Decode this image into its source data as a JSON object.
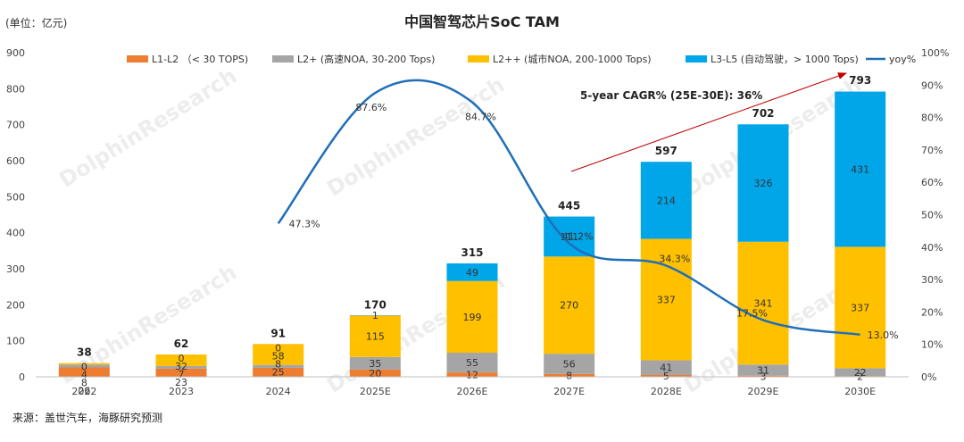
{
  "chart_data": {
    "type": "bar",
    "title": "中国智驾芯片SoC TAM",
    "unit_label": "(单位：亿元)",
    "source_note": "来源：盖世汽车，海豚研究预测",
    "annotation": "5-year CAGR% (25E-30E): 36%",
    "watermark": "DolphinResearch",
    "categories": [
      "2022",
      "2023",
      "2024",
      "2025E",
      "2026E",
      "2027E",
      "2028E",
      "2029E",
      "2030E"
    ],
    "series": [
      {
        "name": "L1-L2 （< 30 TOPS)",
        "color": "#ED7D31",
        "values": [
          26,
          23,
          25,
          20,
          12,
          8,
          5,
          3,
          2
        ]
      },
      {
        "name": "L2+ (高速NOA, 30-200 Tops)",
        "color": "#A5A5A5",
        "values": [
          8,
          7,
          8,
          35,
          55,
          56,
          41,
          31,
          22
        ]
      },
      {
        "name": "L2++ (城市NOA, 200-1000 Tops)",
        "color": "#FFC000",
        "values": [
          4,
          32,
          58,
          115,
          199,
          270,
          337,
          341,
          337
        ]
      },
      {
        "name": "L3-L5 (自动驾驶，> 1000 Tops)",
        "color": "#00A6E8",
        "values": [
          0,
          0,
          0,
          1,
          49,
          111,
          214,
          326,
          431
        ]
      }
    ],
    "segment_labels": [
      [
        "26",
        "8",
        "4",
        "0"
      ],
      [
        "23",
        "7",
        "32",
        "0"
      ],
      [
        "25",
        "8",
        "58",
        "0"
      ],
      [
        "20",
        "35",
        "115",
        "1"
      ],
      [
        "12",
        "55",
        "199",
        "49"
      ],
      [
        "8",
        "56",
        "270",
        "111"
      ],
      [
        "5",
        "41",
        "337",
        "214"
      ],
      [
        "3",
        "31",
        "341",
        "326"
      ],
      [
        "2",
        "22",
        "337",
        "431"
      ]
    ],
    "totals": [
      38,
      62,
      91,
      170,
      315,
      445,
      597,
      702,
      793
    ],
    "total_labels": [
      "38",
      "62",
      "91",
      "170",
      "315",
      "445",
      "597",
      "702",
      "793"
    ],
    "yoy": {
      "name": "yoy%",
      "color": "#1F6FB8",
      "values": [
        null,
        null,
        47.3,
        87.6,
        84.7,
        41.2,
        34.3,
        17.5,
        13.0
      ],
      "labels": [
        "",
        "",
        "47.3%",
        "87.6%",
        "84.7%",
        "41.2%",
        "34.3%",
        "17.5%",
        "13.0%"
      ]
    },
    "ylim": [
      0,
      900
    ],
    "y_ticks": [
      "0",
      "100",
      "200",
      "300",
      "400",
      "500",
      "600",
      "700",
      "800",
      "900"
    ],
    "y2lim": [
      0,
      100
    ],
    "y2_ticks": [
      "0%",
      "10%",
      "20%",
      "30%",
      "40%",
      "50%",
      "60%",
      "70%",
      "80%",
      "90%",
      "100%"
    ],
    "legend_position": "top",
    "grid": false
  }
}
